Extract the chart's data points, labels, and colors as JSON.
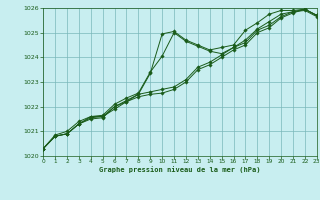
{
  "title": "Graphe pression niveau de la mer (hPa)",
  "background_color": "#c8eef0",
  "plot_bg_color": "#c8eef0",
  "grid_color": "#7ab8ba",
  "line_color": "#1a5c1a",
  "marker_color": "#1a5c1a",
  "xlim": [
    0,
    23
  ],
  "ylim": [
    1020,
    1026
  ],
  "yticks": [
    1020,
    1021,
    1022,
    1023,
    1024,
    1025,
    1026
  ],
  "xticks": [
    0,
    1,
    2,
    3,
    4,
    5,
    6,
    7,
    8,
    9,
    10,
    11,
    12,
    13,
    14,
    15,
    16,
    17,
    18,
    19,
    20,
    21,
    22,
    23
  ],
  "series": [
    [
      1020.3,
      1020.8,
      1020.9,
      1021.3,
      1021.6,
      1021.6,
      1021.9,
      1022.2,
      1022.5,
      1023.35,
      1024.95,
      1025.05,
      1024.7,
      1024.5,
      1024.3,
      1024.4,
      1024.5,
      1025.1,
      1025.4,
      1025.75,
      1025.9,
      1025.9,
      1025.95,
      1025.7
    ],
    [
      1020.3,
      1020.8,
      1020.9,
      1021.3,
      1021.5,
      1021.55,
      1022.0,
      1022.2,
      1022.4,
      1022.5,
      1022.55,
      1022.7,
      1023.0,
      1023.5,
      1023.7,
      1024.0,
      1024.3,
      1024.5,
      1025.0,
      1025.2,
      1025.6,
      1025.8,
      1025.95,
      1025.7
    ],
    [
      1020.3,
      1020.8,
      1020.9,
      1021.3,
      1021.55,
      1021.6,
      1022.0,
      1022.25,
      1022.5,
      1022.6,
      1022.7,
      1022.8,
      1023.1,
      1023.6,
      1023.8,
      1024.1,
      1024.4,
      1024.6,
      1025.1,
      1025.3,
      1025.65,
      1025.85,
      1025.95,
      1025.7
    ],
    [
      1020.3,
      1020.85,
      1021.0,
      1021.4,
      1021.6,
      1021.65,
      1022.1,
      1022.35,
      1022.55,
      1023.4,
      1024.05,
      1025.0,
      1024.65,
      1024.45,
      1024.25,
      1024.15,
      1024.4,
      1024.7,
      1025.15,
      1025.45,
      1025.75,
      1025.85,
      1025.9,
      1025.65
    ]
  ]
}
